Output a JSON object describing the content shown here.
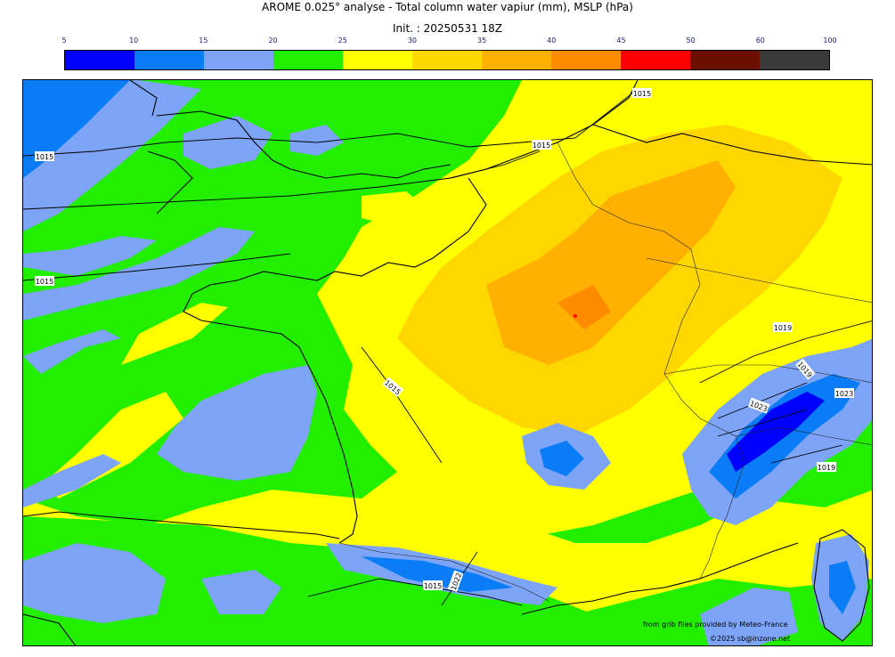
{
  "title": "AROME 0.025° analyse - Total column water vapiur (mm), MSLP (hPa)",
  "init": "Init. : 20250531 18Z",
  "colorbar": {
    "ticks": [
      "5",
      "10",
      "15",
      "20",
      "25",
      "30",
      "35",
      "40",
      "45",
      "50",
      "60",
      "100"
    ],
    "colors": [
      "#0000ff",
      "#0a7cf6",
      "#7da4f7",
      "#22ee00",
      "#ffff00",
      "#ffd700",
      "#ffb000",
      "#ff8c00",
      "#ff0000",
      "#6b1000",
      "#3a3a3a"
    ]
  },
  "isobars": [
    {
      "label": "1015"
    },
    {
      "label": "1015"
    },
    {
      "label": "1015"
    },
    {
      "label": "1015"
    },
    {
      "label": "1015"
    },
    {
      "label": "1019"
    },
    {
      "label": "1019"
    },
    {
      "label": "1023"
    },
    {
      "label": "1019"
    },
    {
      "label": "1023"
    },
    {
      "label": "1015"
    },
    {
      "label": "1022"
    }
  ],
  "credits": {
    "source": "from grib files provided by Meteo-France",
    "copyright": "©2025 sb@inzone.net"
  }
}
